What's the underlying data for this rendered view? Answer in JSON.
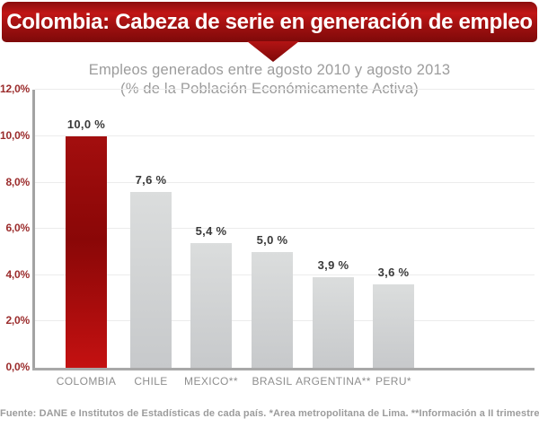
{
  "banner": {
    "title": "Colombia: Cabeza de serie en generación de empleo"
  },
  "subtitle": {
    "line1": "Empleos generados entre agosto 2010 y agosto 2013",
    "line2": "(% de la Población Económicamente Activa)"
  },
  "footer": {
    "source": "Fuente: DANE e Institutos de Estadísticas de cada país. *Area metropolitana de Lima. **Información a II trimestre"
  },
  "colors": {
    "banner_red": "#b01212",
    "highlight_bar_red": "#a50d0d",
    "bar_gray": "#d2d4d5",
    "y_axis_label_red": "#9b2c2c",
    "text_gray": "#9c9c9c",
    "value_label_dark": "#3a3a3a"
  },
  "chart_data": {
    "type": "bar",
    "title": "Empleos generados entre agosto 2010 y agosto 2013 (% de la Población Económicamente Activa)",
    "categories": [
      "COLOMBIA",
      "CHILE",
      "MEXICO**",
      "BRASIL",
      "ARGENTINA**",
      "PERU*"
    ],
    "values": [
      10.0,
      7.6,
      5.4,
      5.0,
      3.9,
      3.6
    ],
    "value_labels": [
      "10,0 %",
      "7,6 %",
      "5,4 %",
      "5,0 %",
      "3,9 %",
      "3,6 %"
    ],
    "highlight_index": 0,
    "xlabel": "",
    "ylabel": "",
    "ylim": [
      0,
      12
    ],
    "ytick_step": 2,
    "ytick_labels": [
      "0,0%",
      "2,0%",
      "4,0%",
      "6,0%",
      "8,0%",
      "10,0%",
      "12,0%"
    ],
    "grid": true,
    "legend": false
  }
}
